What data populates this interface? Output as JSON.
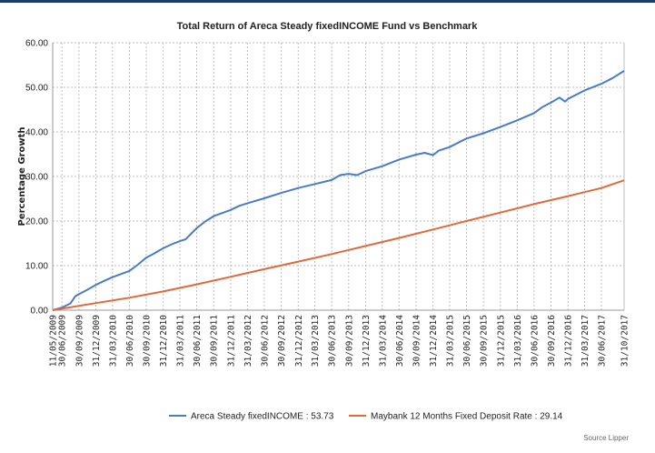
{
  "chart_data": {
    "type": "line",
    "title": "Total Return of Areca Steady fixedINCOME Fund vs Benchmark",
    "ylabel": "Percentage Growth",
    "xlabel": "",
    "ylim": [
      0,
      60
    ],
    "yticks": [
      "0.00",
      "10.00",
      "20.00",
      "30.00",
      "40.00",
      "50.00",
      "60.00"
    ],
    "x_range": [
      "2009-05-11",
      "2017-10-31"
    ],
    "xticks": [
      "11/05/2009",
      "30/06/2009",
      "30/09/2009",
      "31/12/2009",
      "31/03/2010",
      "30/06/2010",
      "30/09/2010",
      "31/12/2010",
      "31/03/2011",
      "30/06/2011",
      "30/09/2011",
      "31/12/2011",
      "31/03/2012",
      "30/06/2012",
      "30/09/2012",
      "31/12/2012",
      "31/03/2013",
      "30/06/2013",
      "30/09/2013",
      "31/12/2013",
      "31/03/2014",
      "30/06/2014",
      "30/09/2014",
      "31/12/2014",
      "31/03/2015",
      "30/06/2015",
      "30/09/2015",
      "31/12/2015",
      "31/03/2016",
      "30/06/2016",
      "30/09/2016",
      "31/12/2016",
      "31/03/2017",
      "30/06/2017",
      "31/10/2017"
    ],
    "grid": true,
    "legend": "bottom",
    "series": [
      {
        "name": "Areca Steady fixedINCOME",
        "legend_label": "Areca Steady fixedINCOME : 53.73",
        "color": "#4a7bc8",
        "points": [
          [
            "2009-05-11",
            0.0
          ],
          [
            "2009-06-30",
            0.6
          ],
          [
            "2009-08-15",
            1.5
          ],
          [
            "2009-09-10",
            3.1
          ],
          [
            "2009-09-30",
            3.6
          ],
          [
            "2009-11-15",
            4.6
          ],
          [
            "2009-12-31",
            5.7
          ],
          [
            "2010-02-15",
            6.6
          ],
          [
            "2010-03-31",
            7.4
          ],
          [
            "2010-05-15",
            8.1
          ],
          [
            "2010-06-30",
            8.8
          ],
          [
            "2010-08-15",
            10.2
          ],
          [
            "2010-09-30",
            11.8
          ],
          [
            "2010-11-15",
            12.8
          ],
          [
            "2010-12-31",
            13.9
          ],
          [
            "2011-02-15",
            14.8
          ],
          [
            "2011-03-31",
            15.5
          ],
          [
            "2011-05-01",
            15.9
          ],
          [
            "2011-06-30",
            18.4
          ],
          [
            "2011-08-15",
            19.9
          ],
          [
            "2011-09-30",
            21.1
          ],
          [
            "2011-11-15",
            21.8
          ],
          [
            "2011-12-31",
            22.5
          ],
          [
            "2012-02-15",
            23.4
          ],
          [
            "2012-03-31",
            24.0
          ],
          [
            "2012-06-30",
            25.1
          ],
          [
            "2012-09-30",
            26.3
          ],
          [
            "2012-12-31",
            27.4
          ],
          [
            "2013-03-31",
            28.3
          ],
          [
            "2013-06-30",
            29.2
          ],
          [
            "2013-08-15",
            30.3
          ],
          [
            "2013-09-30",
            30.6
          ],
          [
            "2013-11-15",
            30.3
          ],
          [
            "2013-12-31",
            31.2
          ],
          [
            "2014-03-31",
            32.3
          ],
          [
            "2014-06-30",
            33.8
          ],
          [
            "2014-09-30",
            34.9
          ],
          [
            "2014-11-15",
            35.3
          ],
          [
            "2014-12-31",
            34.8
          ],
          [
            "2015-01-31",
            35.8
          ],
          [
            "2015-03-31",
            36.6
          ],
          [
            "2015-06-30",
            38.5
          ],
          [
            "2015-09-30",
            39.7
          ],
          [
            "2015-12-31",
            41.1
          ],
          [
            "2016-03-31",
            42.6
          ],
          [
            "2016-06-30",
            44.2
          ],
          [
            "2016-08-15",
            45.6
          ],
          [
            "2016-09-30",
            46.6
          ],
          [
            "2016-11-15",
            47.7
          ],
          [
            "2016-12-15",
            46.8
          ],
          [
            "2016-12-31",
            47.4
          ],
          [
            "2017-03-31",
            49.3
          ],
          [
            "2017-06-30",
            50.8
          ],
          [
            "2017-08-31",
            52.1
          ],
          [
            "2017-10-31",
            53.7
          ]
        ]
      },
      {
        "name": "Maybank 12 Months Fixed Deposit Rate",
        "legend_label": "Maybank 12 Months Fixed Deposit Rate : 29.14",
        "color": "#e06a3a",
        "points": [
          [
            "2009-05-11",
            0.0
          ],
          [
            "2009-12-31",
            1.6
          ],
          [
            "2010-06-30",
            2.8
          ],
          [
            "2010-12-31",
            4.2
          ],
          [
            "2011-06-30",
            5.8
          ],
          [
            "2011-12-31",
            7.5
          ],
          [
            "2012-06-30",
            9.2
          ],
          [
            "2012-12-31",
            10.9
          ],
          [
            "2013-06-30",
            12.6
          ],
          [
            "2013-12-31",
            14.4
          ],
          [
            "2014-06-30",
            16.2
          ],
          [
            "2014-12-31",
            18.1
          ],
          [
            "2015-06-30",
            20.0
          ],
          [
            "2015-12-31",
            21.9
          ],
          [
            "2016-06-30",
            23.8
          ],
          [
            "2016-12-31",
            25.6
          ],
          [
            "2017-06-30",
            27.4
          ],
          [
            "2017-10-31",
            29.14
          ]
        ]
      }
    ],
    "source": "Source Lipper"
  }
}
